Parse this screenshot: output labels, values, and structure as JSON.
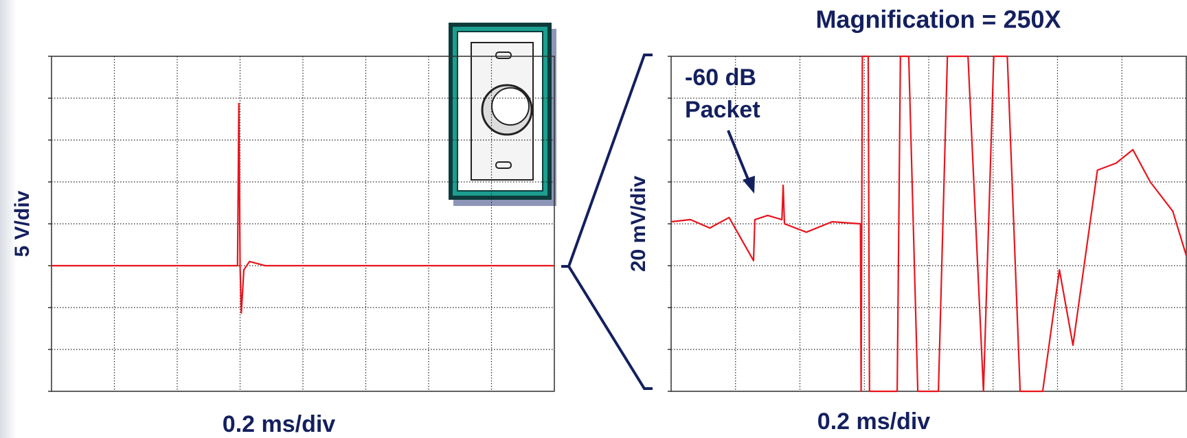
{
  "chart_data": [
    {
      "type": "line",
      "y_label": "5 V/div",
      "x_label": "0.2 ms/div",
      "xlim": [
        0,
        8
      ],
      "ylim": [
        -4,
        4
      ],
      "xticks": [
        0,
        1,
        2,
        3,
        4,
        5,
        6,
        7,
        8
      ],
      "yticks": [
        -4,
        -3,
        -2,
        -1,
        0,
        1,
        2,
        3,
        4
      ],
      "grid": true,
      "x": [
        0,
        2.96,
        2.98,
        3.0,
        3.02,
        3.06,
        3.15,
        3.4,
        8
      ],
      "series": [
        {
          "color": "#e8141c",
          "values": [
            -1,
            -1,
            2.87,
            -1,
            -2.13,
            -1.1,
            -0.9,
            -1,
            -1
          ]
        }
      ]
    },
    {
      "type": "line",
      "title": "Magnification = 250X",
      "y_label": "20 mV/div",
      "x_label": "0.2 ms/div",
      "annotation": [
        "-60 dB",
        "Packet"
      ],
      "xlim": [
        0,
        8
      ],
      "ylim": [
        -4,
        4
      ],
      "xticks": [
        0,
        1,
        2,
        3,
        4,
        5,
        6,
        7,
        8
      ],
      "yticks": [
        -4,
        -3,
        -2,
        -1,
        0,
        1,
        2,
        3,
        4
      ],
      "grid": true,
      "x": [
        0,
        0.3,
        0.6,
        0.9,
        1.28,
        1.3,
        1.5,
        1.72,
        1.74,
        1.76,
        2.1,
        2.5,
        2.94,
        2.95,
        2.97,
        3.06,
        3.08,
        3.51,
        3.56,
        3.69,
        3.83,
        4.15,
        4.29,
        4.61,
        4.85,
        5.01,
        5.22,
        5.42,
        5.77,
        6.03,
        6.24,
        6.62,
        6.91,
        7.17,
        7.44,
        7.79,
        8.0
      ],
      "series": [
        {
          "color": "#e8141c",
          "values": [
            0.05,
            0.1,
            -0.1,
            0.15,
            -0.88,
            0.1,
            0.2,
            0.1,
            0.92,
            0.0,
            -0.2,
            0.05,
            0.0,
            -4,
            4,
            4,
            -4,
            -4,
            4,
            4,
            -4,
            -4,
            4,
            4,
            -4,
            4,
            4,
            -4,
            -4,
            -1.1,
            -2.9,
            1.28,
            1.45,
            1.77,
            1.0,
            0.3,
            -0.76
          ]
        }
      ]
    }
  ]
}
